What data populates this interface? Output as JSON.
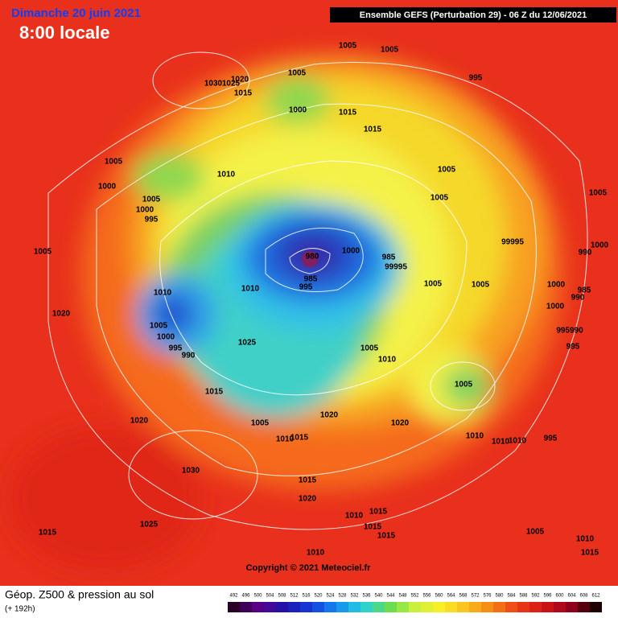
{
  "header": {
    "date": "Dimanche 20 juin 2021",
    "time": "8:00 locale",
    "model": "Ensemble GEFS  (Perturbation 29)  -  06 Z du 12/06/2021"
  },
  "map": {
    "copyright": "Copyright © 2021 Meteociel.fr",
    "pressure_labels": [
      1005,
      1005,
      995,
      1005,
      1020,
      1030,
      1025,
      1015,
      1000,
      1015,
      1015,
      1005,
      1010,
      1005,
      1000,
      1005,
      1005,
      1000,
      995,
      1005,
      1005,
      980,
      1000,
      985,
      99995,
      99995,
      1000,
      990,
      985,
      995,
      1010,
      1005,
      1005,
      1000,
      985,
      990,
      1010,
      1020,
      1000,
      1005,
      1000,
      995990,
      995,
      990,
      1025,
      995,
      1005,
      1010,
      1015,
      1005,
      1020,
      1020,
      1020,
      1005,
      1010,
      1015,
      1010,
      1010,
      1010,
      995,
      1030,
      1015,
      1020,
      1010,
      1015,
      1015,
      1025,
      1015,
      1015,
      1005,
      1010,
      1015,
      1010
    ]
  },
  "footer": {
    "title": "Géop. Z500 & pression au sol",
    "lead": "(+ 192h)",
    "colorbar_ticks": [
      492,
      496,
      500,
      504,
      508,
      512,
      516,
      520,
      524,
      528,
      532,
      536,
      540,
      544,
      548,
      552,
      556,
      560,
      564,
      568,
      572,
      576,
      580,
      584,
      588,
      592,
      596,
      600,
      604,
      608,
      612
    ]
  }
}
